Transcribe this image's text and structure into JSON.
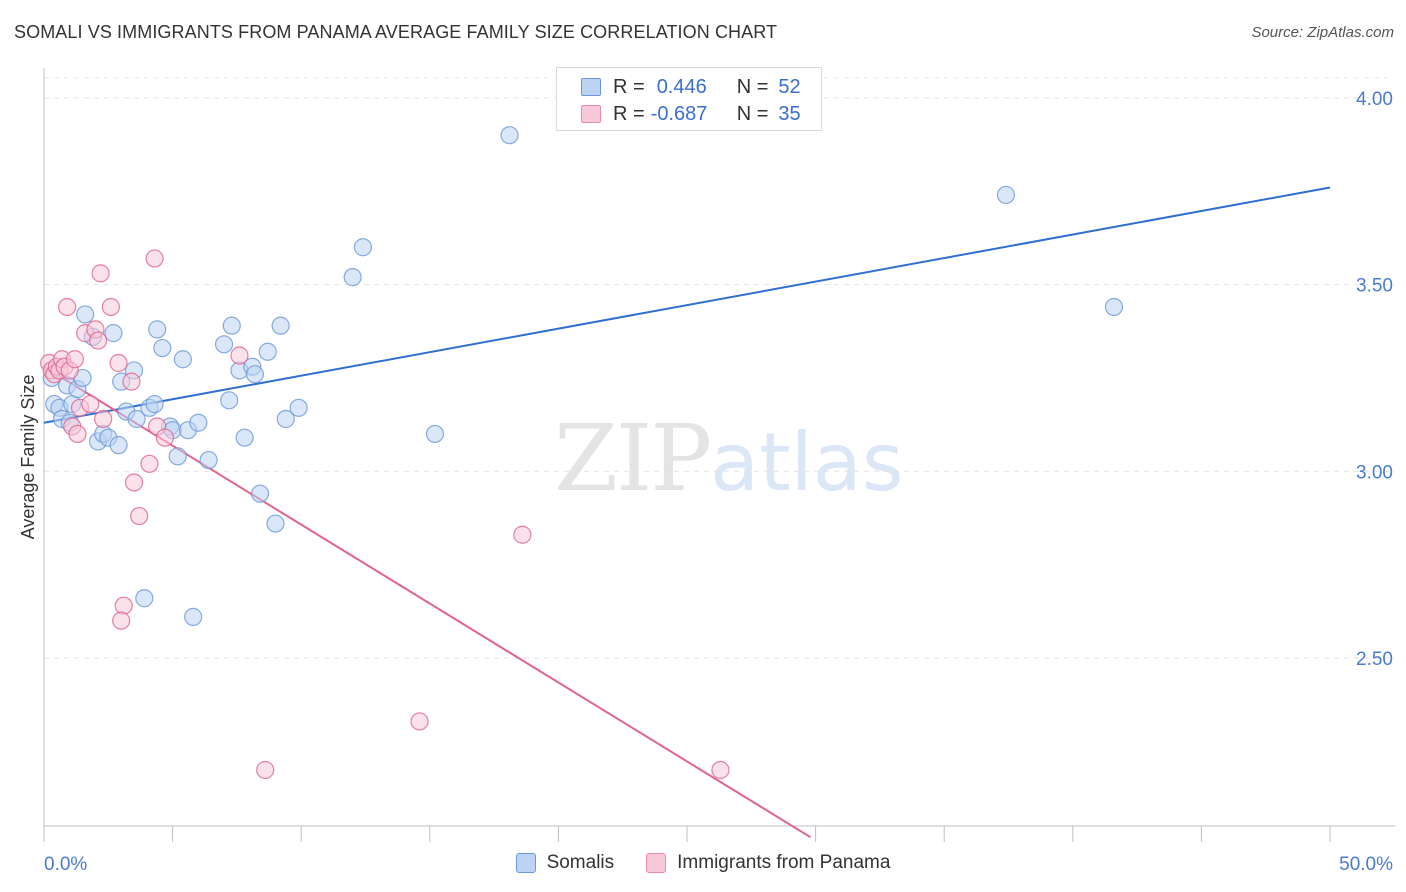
{
  "title": "SOMALI VS IMMIGRANTS FROM PANAMA AVERAGE FAMILY SIZE CORRELATION CHART",
  "source": "Source: ZipAtlas.com",
  "watermark": {
    "zip": "ZIP",
    "atlas": "atlas"
  },
  "legend": {
    "r_label": "R =",
    "n_label": "N =",
    "rows": [
      {
        "r": "0.446",
        "n": "52",
        "color": "#a9c4ee",
        "edge": "#6a97d8"
      },
      {
        "r": "-0.687",
        "n": "35",
        "color": "#f6bcd0",
        "edge": "#e98aac"
      }
    ]
  },
  "bottom_legend": [
    "Somalis",
    "Immigrants from Panama"
  ],
  "chart_data": {
    "type": "scatter",
    "title": "SOMALI VS IMMIGRANTS FROM PANAMA AVERAGE FAMILY SIZE CORRELATION CHART",
    "xlabel": "",
    "ylabel": "Average Family Size",
    "xlim": [
      0,
      50
    ],
    "ylim": [
      2.05,
      4.08
    ],
    "x_tick_labels": [
      "0.0%",
      "50.0%"
    ],
    "y_ticks": [
      2.5,
      3.0,
      3.5,
      4.0
    ],
    "y_tick_labels": [
      "2.50",
      "3.00",
      "3.50",
      "4.00"
    ],
    "grid": "horizontal dashed",
    "legend_position": "top-center",
    "series": [
      {
        "name": "Somalis",
        "color": "#6a97d8",
        "fill": "#bcd3f3",
        "trend": [
          [
            0.0,
            3.13
          ],
          [
            50.0,
            3.76
          ]
        ],
        "points": [
          [
            0.3,
            3.25
          ],
          [
            0.4,
            3.18
          ],
          [
            0.6,
            3.17
          ],
          [
            0.7,
            3.14
          ],
          [
            0.9,
            3.23
          ],
          [
            1.0,
            3.13
          ],
          [
            1.1,
            3.18
          ],
          [
            1.3,
            3.22
          ],
          [
            1.5,
            3.25
          ],
          [
            1.6,
            3.42
          ],
          [
            1.9,
            3.36
          ],
          [
            2.1,
            3.08
          ],
          [
            2.3,
            3.1
          ],
          [
            2.5,
            3.09
          ],
          [
            2.7,
            3.37
          ],
          [
            2.9,
            3.07
          ],
          [
            3.0,
            3.24
          ],
          [
            3.2,
            3.16
          ],
          [
            3.5,
            3.27
          ],
          [
            3.6,
            3.14
          ],
          [
            3.9,
            2.66
          ],
          [
            4.1,
            3.17
          ],
          [
            4.3,
            3.18
          ],
          [
            4.4,
            3.38
          ],
          [
            4.6,
            3.33
          ],
          [
            4.9,
            3.12
          ],
          [
            5.0,
            3.11
          ],
          [
            5.2,
            3.04
          ],
          [
            5.4,
            3.3
          ],
          [
            5.6,
            3.11
          ],
          [
            5.8,
            2.61
          ],
          [
            6.0,
            3.13
          ],
          [
            6.4,
            3.03
          ],
          [
            7.0,
            3.34
          ],
          [
            7.2,
            3.19
          ],
          [
            7.3,
            3.39
          ],
          [
            7.6,
            3.27
          ],
          [
            7.8,
            3.09
          ],
          [
            8.1,
            3.28
          ],
          [
            8.2,
            3.26
          ],
          [
            8.4,
            2.94
          ],
          [
            8.7,
            3.32
          ],
          [
            9.0,
            2.86
          ],
          [
            9.2,
            3.39
          ],
          [
            9.4,
            3.14
          ],
          [
            9.9,
            3.17
          ],
          [
            12.0,
            3.52
          ],
          [
            12.4,
            3.6
          ],
          [
            15.2,
            3.1
          ],
          [
            18.1,
            3.9
          ],
          [
            37.4,
            3.74
          ],
          [
            41.6,
            3.44
          ]
        ]
      },
      {
        "name": "Immigrants from Panama",
        "color": "#e0628f",
        "fill": "#f7c9d8",
        "trend": [
          [
            0.0,
            3.28
          ],
          [
            29.8,
            2.02
          ]
        ],
        "points": [
          [
            0.2,
            3.29
          ],
          [
            0.3,
            3.27
          ],
          [
            0.4,
            3.26
          ],
          [
            0.5,
            3.28
          ],
          [
            0.6,
            3.27
          ],
          [
            0.7,
            3.3
          ],
          [
            0.8,
            3.28
          ],
          [
            0.9,
            3.44
          ],
          [
            1.0,
            3.27
          ],
          [
            1.1,
            3.12
          ],
          [
            1.2,
            3.3
          ],
          [
            1.3,
            3.1
          ],
          [
            1.4,
            3.17
          ],
          [
            1.6,
            3.37
          ],
          [
            1.8,
            3.18
          ],
          [
            2.0,
            3.38
          ],
          [
            2.1,
            3.35
          ],
          [
            2.2,
            3.53
          ],
          [
            2.3,
            3.14
          ],
          [
            2.6,
            3.44
          ],
          [
            2.9,
            3.29
          ],
          [
            3.1,
            2.64
          ],
          [
            3.0,
            2.6
          ],
          [
            3.4,
            3.24
          ],
          [
            3.5,
            2.97
          ],
          [
            3.7,
            2.88
          ],
          [
            4.1,
            3.02
          ],
          [
            4.3,
            3.57
          ],
          [
            4.4,
            3.12
          ],
          [
            4.7,
            3.09
          ],
          [
            7.6,
            3.31
          ],
          [
            8.6,
            2.2
          ],
          [
            14.6,
            2.33
          ],
          [
            18.6,
            2.83
          ],
          [
            26.3,
            2.2
          ]
        ]
      }
    ]
  }
}
